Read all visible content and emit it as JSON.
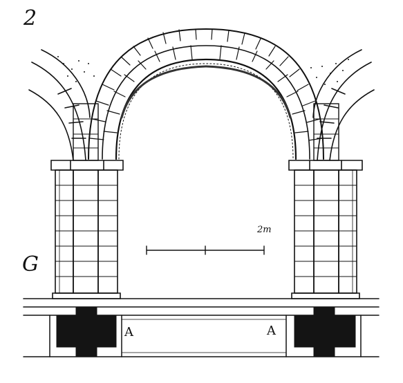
{
  "figure": {
    "number": "2",
    "plan_letter": "G",
    "scale_label": "2m",
    "section_labels": [
      "A",
      "A"
    ]
  },
  "colors": {
    "ink": "#111111",
    "paper": "#ffffff",
    "solid_pier": "#141414"
  }
}
